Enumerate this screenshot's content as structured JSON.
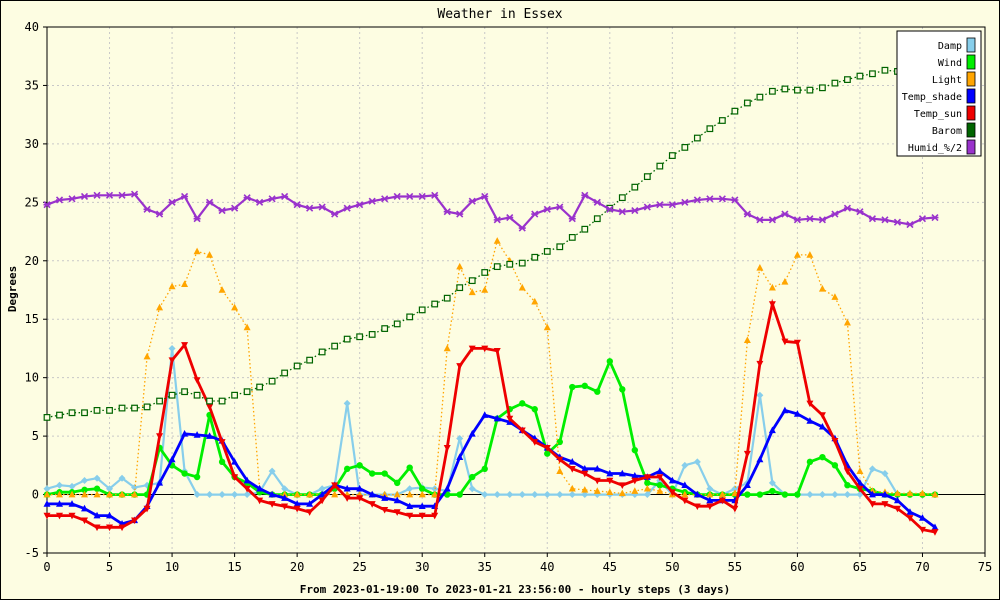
{
  "chart_data": {
    "type": "line",
    "title": "Weather in Essex",
    "xlabel": "From 2023-01-19:00 To 2023-01-21 23:56:00 - hourly steps (3 days)",
    "ylabel": "Degrees",
    "xlim": [
      0,
      75
    ],
    "ylim": [
      -5,
      40
    ],
    "xticks": [
      0,
      5,
      10,
      15,
      20,
      25,
      30,
      35,
      40,
      45,
      50,
      55,
      60,
      65,
      70,
      75
    ],
    "yticks": [
      -5,
      0,
      5,
      10,
      15,
      20,
      25,
      30,
      35,
      40
    ],
    "grid": true,
    "legend_position": "top-right",
    "series": [
      {
        "name": "Damp",
        "color": "#87ceeb",
        "marker": "diamond",
        "line": "solid",
        "values": [
          0.5,
          0.8,
          0.7,
          1.2,
          1.4,
          0.5,
          1.4,
          0.6,
          0.8,
          1.0,
          12.5,
          2.0,
          0,
          0,
          0,
          0,
          0,
          0.2,
          2.0,
          0.5,
          0,
          0,
          0.5,
          0.8,
          7.8,
          0,
          0,
          0,
          0,
          0.5,
          0.6,
          0.5,
          0.3,
          4.8,
          0.5,
          0,
          0,
          0,
          0,
          0,
          0,
          0,
          0,
          0,
          0,
          0,
          0,
          0,
          0,
          1.2,
          0,
          2.5,
          2.8,
          0.5,
          0,
          0.5,
          1.0,
          8.5,
          1.0,
          0,
          0,
          0,
          0,
          0,
          0,
          0,
          2.2,
          1.8,
          0,
          0,
          0,
          0
        ]
      },
      {
        "name": "Wind",
        "color": "#00ee00",
        "marker": "circle",
        "line": "solid",
        "values": [
          0,
          0.2,
          0.2,
          0.4,
          0.5,
          0,
          0,
          0,
          0,
          4.0,
          2.5,
          1.8,
          1.5,
          6.8,
          2.8,
          1.5,
          1.0,
          0.2,
          0,
          0,
          0,
          0,
          0,
          0.5,
          2.2,
          2.5,
          1.8,
          1.8,
          1.0,
          2.3,
          0.5,
          0,
          0,
          0,
          1.5,
          2.2,
          6.5,
          7.3,
          7.8,
          7.3,
          3.5,
          4.5,
          9.2,
          9.3,
          8.8,
          11.4,
          9.0,
          3.8,
          1.0,
          0.8,
          0.5,
          0.2,
          0,
          0,
          0,
          0,
          0,
          0,
          0.3,
          0,
          0,
          2.8,
          3.2,
          2.5,
          0.8,
          0.5,
          0.3,
          0,
          0,
          0,
          0,
          0
        ]
      },
      {
        "name": "Light",
        "color": "#ffa500",
        "marker": "triangle-up",
        "line": "dotted",
        "values": [
          0,
          0,
          0,
          0,
          0,
          0,
          0,
          0,
          11.8,
          16.0,
          17.8,
          18.0,
          20.8,
          20.5,
          17.5,
          16.0,
          14.3,
          0.5,
          0,
          0,
          0,
          0,
          0,
          0,
          0,
          0,
          0,
          0,
          0,
          0,
          0,
          0,
          12.5,
          19.5,
          17.3,
          17.5,
          21.7,
          20.0,
          17.7,
          16.5,
          14.3,
          2.0,
          0.5,
          0.4,
          0.3,
          0.2,
          0.1,
          0.3,
          0.5,
          0.3,
          0,
          0,
          0,
          0,
          0,
          0.1,
          13.2,
          19.4,
          17.7,
          18.2,
          20.5,
          20.5,
          17.6,
          16.9,
          14.7,
          2.0,
          0.3,
          0.2,
          0.1,
          0.1,
          0.1,
          0
        ]
      },
      {
        "name": "Temp_shade",
        "color": "#0000ff",
        "marker": "triangle-up",
        "line": "solid",
        "values": [
          -0.8,
          -0.8,
          -0.8,
          -1.2,
          -1.8,
          -1.8,
          -2.5,
          -2.2,
          -1.0,
          1.0,
          3.0,
          5.2,
          5.1,
          5.0,
          4.6,
          2.8,
          1.2,
          0.5,
          0,
          -0.3,
          -0.8,
          -0.8,
          0,
          0.8,
          0.5,
          0.5,
          0,
          -0.3,
          -0.5,
          -1.0,
          -1.0,
          -1.0,
          0.5,
          3.2,
          5.2,
          6.8,
          6.5,
          6.2,
          5.5,
          4.8,
          4.0,
          3.2,
          2.8,
          2.2,
          2.2,
          1.8,
          1.8,
          1.6,
          1.5,
          2.0,
          1.2,
          0.8,
          0,
          -0.5,
          -0.5,
          -0.5,
          0.8,
          3.0,
          5.5,
          7.2,
          6.9,
          6.3,
          5.8,
          4.8,
          2.5,
          1.0,
          0,
          0,
          -0.5,
          -1.5,
          -2.0,
          -2.8
        ]
      },
      {
        "name": "Temp_sun",
        "color": "#ee0000",
        "marker": "triangle-down",
        "line": "solid",
        "values": [
          -1.8,
          -1.8,
          -1.8,
          -2.2,
          -2.8,
          -2.8,
          -2.8,
          -2.2,
          -1.2,
          5.0,
          11.5,
          12.8,
          9.8,
          7.5,
          4.5,
          1.5,
          0.5,
          -0.5,
          -0.8,
          -1.0,
          -1.2,
          -1.5,
          -0.5,
          0.8,
          -0.3,
          -0.3,
          -0.8,
          -1.3,
          -1.5,
          -1.8,
          -1.8,
          -1.8,
          4.0,
          11.0,
          12.5,
          12.5,
          12.3,
          6.5,
          5.5,
          4.5,
          4.0,
          3.0,
          2.2,
          1.8,
          1.2,
          1.2,
          0.8,
          1.2,
          1.5,
          1.5,
          0.2,
          -0.5,
          -1.0,
          -1.0,
          -0.5,
          -1.2,
          3.5,
          11.2,
          16.3,
          13.1,
          13.0,
          7.8,
          6.8,
          4.6,
          2.0,
          0.5,
          -0.8,
          -0.8,
          -1.2,
          -2.0,
          -3.0,
          -3.2
        ]
      },
      {
        "name": "Barom",
        "color": "#006400",
        "marker": "square",
        "line": "dotted",
        "values": [
          6.6,
          6.8,
          7.0,
          7.0,
          7.2,
          7.2,
          7.4,
          7.4,
          7.5,
          8.0,
          8.5,
          8.8,
          8.5,
          8.0,
          8.0,
          8.5,
          8.8,
          9.2,
          9.7,
          10.4,
          11.0,
          11.5,
          12.2,
          12.7,
          13.3,
          13.5,
          13.7,
          14.2,
          14.6,
          15.2,
          15.8,
          16.3,
          16.8,
          17.7,
          18.3,
          19.0,
          19.5,
          19.7,
          19.8,
          20.3,
          20.8,
          21.2,
          22.0,
          22.7,
          23.6,
          24.5,
          25.4,
          26.3,
          27.2,
          28.1,
          29.0,
          29.7,
          30.5,
          31.3,
          32.0,
          32.8,
          33.5,
          34.0,
          34.5,
          34.7,
          34.6,
          34.6,
          34.8,
          35.2,
          35.5,
          35.8,
          36.0,
          36.3,
          36.2,
          36.2,
          36.2,
          36.2
        ]
      },
      {
        "name": "Humid_%/2",
        "color": "#9932cc",
        "marker": "x",
        "line": "solid",
        "values": [
          24.8,
          25.2,
          25.3,
          25.5,
          25.6,
          25.6,
          25.6,
          25.7,
          24.4,
          24.0,
          25.0,
          25.5,
          23.6,
          25.0,
          24.3,
          24.5,
          25.4,
          25.0,
          25.3,
          25.5,
          24.8,
          24.5,
          24.6,
          24.0,
          24.5,
          24.8,
          25.1,
          25.3,
          25.5,
          25.5,
          25.5,
          25.6,
          24.2,
          24.0,
          25.1,
          25.5,
          23.5,
          23.7,
          22.8,
          24.0,
          24.4,
          24.6,
          23.6,
          25.6,
          25.0,
          24.4,
          24.2,
          24.3,
          24.6,
          24.8,
          24.8,
          25.0,
          25.2,
          25.3,
          25.3,
          25.2,
          24.0,
          23.5,
          23.5,
          24.0,
          23.5,
          23.6,
          23.5,
          24.0,
          24.5,
          24.2,
          23.6,
          23.5,
          23.3,
          23.1,
          23.6,
          23.7
        ]
      }
    ]
  }
}
